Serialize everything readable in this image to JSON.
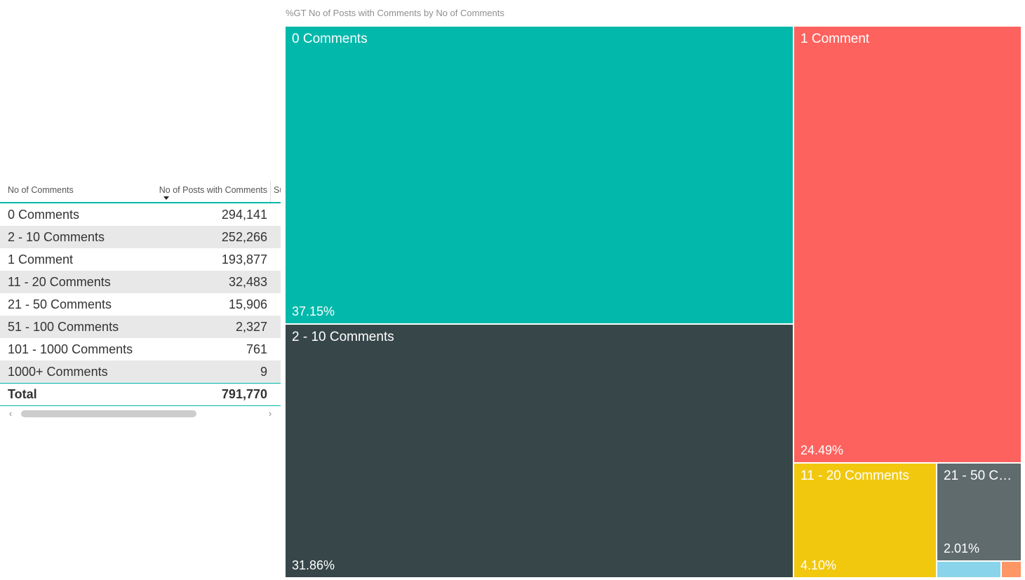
{
  "treemap": {
    "title": "%GT No of Posts with Comments by No of Comments",
    "nodes": [
      {
        "label": "0 Comments",
        "pct": "37.15%",
        "color": "#01B8AA"
      },
      {
        "label": "2 - 10 Comments",
        "pct": "31.86%",
        "color": "#374649"
      },
      {
        "label": "1 Comment",
        "pct": "24.49%",
        "color": "#FD625E"
      },
      {
        "label": "11 - 20 Comments",
        "pct": "4.10%",
        "color": "#F2C80F"
      },
      {
        "label": "21 - 50 Comments",
        "pct": "2.01%",
        "color": "#5F6B6D"
      },
      {
        "label": "",
        "pct": "",
        "color": "#8AD4EB"
      },
      {
        "label": "",
        "pct": "",
        "color": "#FE9666"
      }
    ]
  },
  "table": {
    "col1": "No of Comments",
    "col2": "No of Posts with Comments",
    "col3": "Su",
    "rows": [
      {
        "label": "0 Comments",
        "value": "294,141"
      },
      {
        "label": "2 - 10 Comments",
        "value": "252,266"
      },
      {
        "label": "1 Comment",
        "value": "193,877"
      },
      {
        "label": "11 - 20 Comments",
        "value": "32,483"
      },
      {
        "label": "21 - 50 Comments",
        "value": "15,906"
      },
      {
        "label": "51 - 100 Comments",
        "value": "2,327"
      },
      {
        "label": "101 - 1000 Comments",
        "value": "761"
      },
      {
        "label": "1000+ Comments",
        "value": "9"
      }
    ],
    "total_label": "Total",
    "total_value": "791,770"
  },
  "chart_data": [
    {
      "type": "treemap",
      "title": "%GT No of Posts with Comments by No of Comments",
      "categories": [
        "0 Comments",
        "2 - 10 Comments",
        "1 Comment",
        "11 - 20 Comments",
        "21 - 50 Comments",
        "51 - 100 Comments",
        "101 - 1000 Comments"
      ],
      "values": [
        37.15,
        31.86,
        24.49,
        4.1,
        2.01,
        0.29,
        0.1
      ],
      "value_unit": "percent of grand total",
      "colors": [
        "#01B8AA",
        "#374649",
        "#FD625E",
        "#F2C80F",
        "#5F6B6D",
        "#8AD4EB",
        "#FE9666"
      ],
      "legend": "none"
    },
    {
      "type": "table",
      "columns": [
        "No of Comments",
        "No of Posts with Comments"
      ],
      "rows": [
        [
          "0 Comments",
          294141
        ],
        [
          "2 - 10 Comments",
          252266
        ],
        [
          "1 Comment",
          193877
        ],
        [
          "11 - 20 Comments",
          32483
        ],
        [
          "21 - 50 Comments",
          15906
        ],
        [
          "51 - 100 Comments",
          2327
        ],
        [
          "101 - 1000 Comments",
          761
        ],
        [
          "1000+ Comments",
          9
        ]
      ],
      "total": [
        "Total",
        791770
      ],
      "sort": "No of Posts with Comments descending"
    }
  ]
}
